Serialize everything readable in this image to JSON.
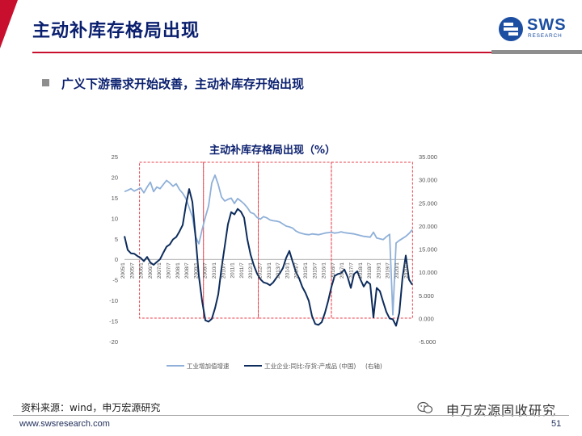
{
  "header": {
    "title": "主动补库存格局出现",
    "logo_text": "SWS",
    "logo_sub": "RESEARCH",
    "brand_color": "#1c4ea1",
    "accent_color": "#c8102e"
  },
  "bullet": {
    "text": "广义下游需求开始改善，主动补库存开始出现"
  },
  "chart_data": {
    "type": "line",
    "title": "主动补库存格局出现（%）",
    "left_axis": {
      "ticks": [
        "25",
        "20",
        "15",
        "10",
        "5",
        "0",
        "-5",
        "-10",
        "-15",
        "-20"
      ],
      "range": [
        -20,
        25
      ]
    },
    "right_axis": {
      "ticks": [
        "35.000",
        "30.000",
        "25.000",
        "20.000",
        "15.000",
        "10.000",
        "5.000",
        "0.000",
        "-5.000"
      ],
      "range": [
        -5,
        35
      ]
    },
    "x_labels": [
      "2005/1",
      "2005/7",
      "2006/1",
      "2006/7",
      "2007/1",
      "2007/7",
      "2008/1",
      "2008/7",
      "2009/1",
      "2009/7",
      "2010/1",
      "2010/7",
      "2011/1",
      "2011/7",
      "2012/1",
      "2012/7",
      "2013/1",
      "2013/7",
      "2014/1",
      "2014/7",
      "2015/1",
      "2015/7",
      "2016/1",
      "2016/7",
      "2017/1",
      "2017/7",
      "2018/1",
      "2018/7",
      "2019/1",
      "2019/7",
      "2020/1",
      "2020/7"
    ],
    "series": [
      {
        "name": "工业增加值增速",
        "axis": "left",
        "color": "#8fb0d8",
        "values": [
          16.5,
          16.8,
          17.2,
          16.6,
          17.0,
          17.4,
          16.2,
          17.6,
          18.8,
          16.5,
          17.6,
          17.2,
          18.2,
          19.2,
          18.6,
          17.8,
          18.4,
          17.0,
          16.1,
          14.8,
          12.6,
          10.4,
          5.5,
          3.8,
          7.2,
          10.2,
          13.0,
          18.6,
          20.5,
          18.2,
          15.2,
          14.2,
          14.6,
          14.9,
          13.6,
          14.8,
          14.2,
          13.5,
          12.6,
          11.4,
          11.1,
          10.2,
          9.8,
          10.4,
          10.1,
          9.6,
          9.4,
          9.3,
          9.1,
          8.6,
          8.1,
          7.9,
          7.6,
          6.9,
          6.5,
          6.3,
          6.1,
          6.0,
          6.2,
          6.1,
          6.0,
          6.2,
          6.4,
          6.5,
          6.6,
          6.4,
          6.5,
          6.7,
          6.5,
          6.4,
          6.3,
          6.2,
          6.0,
          5.8,
          5.6,
          5.5,
          5.4,
          6.6,
          5.2,
          5.0,
          4.8,
          5.5,
          6.1,
          -13.5,
          4.0,
          4.6,
          5.1,
          5.6,
          6.3,
          7.2
        ]
      },
      {
        "name": "工业企业:同比:存货:产成品 (中国)",
        "note": "(右轴)",
        "axis": "right",
        "color": "#0d2c5c",
        "values": [
          17.8,
          14.8,
          14.1,
          14.0,
          13.5,
          13.1,
          12.4,
          13.3,
          12.1,
          11.6,
          12.2,
          12.8,
          14.2,
          15.5,
          16.0,
          17.1,
          17.6,
          18.8,
          20.2,
          24.5,
          28.0,
          25.2,
          17.5,
          9.2,
          3.8,
          -0.4,
          -0.7,
          -0.1,
          2.2,
          5.2,
          10.8,
          15.6,
          20.4,
          23.0,
          22.5,
          23.7,
          23.1,
          21.8,
          17.1,
          13.8,
          11.5,
          9.7,
          8.5,
          7.8,
          7.6,
          7.2,
          7.8,
          8.8,
          9.7,
          10.9,
          13.1,
          14.6,
          12.3,
          10.1,
          8.7,
          6.8,
          5.5,
          3.8,
          0.5,
          -1.2,
          -1.4,
          -0.8,
          1.2,
          3.8,
          6.8,
          9.2,
          9.6,
          9.8,
          10.6,
          9.0,
          6.6,
          9.6,
          10.2,
          8.4,
          6.9,
          8.0,
          7.4,
          0.2,
          6.6,
          5.9,
          3.6,
          1.4,
          0.0,
          -0.2,
          -1.6,
          1.2,
          8.9,
          13.6,
          8.4,
          7.3
        ]
      }
    ],
    "highlight_periods": [
      {
        "from": "2006/1",
        "to": "2009/7"
      },
      {
        "from": "2009/7",
        "to": "2012/7"
      },
      {
        "from": "2012/7",
        "to": "2016/7"
      },
      {
        "from": "2016/7",
        "to": "2020/7"
      }
    ],
    "legend_position": "bottom",
    "grid": false
  },
  "footer": {
    "source": "资料来源：wind，申万宏源研究",
    "website": "www.swsresearch.com",
    "page": "51",
    "watermark": "申万宏源固收研究"
  }
}
